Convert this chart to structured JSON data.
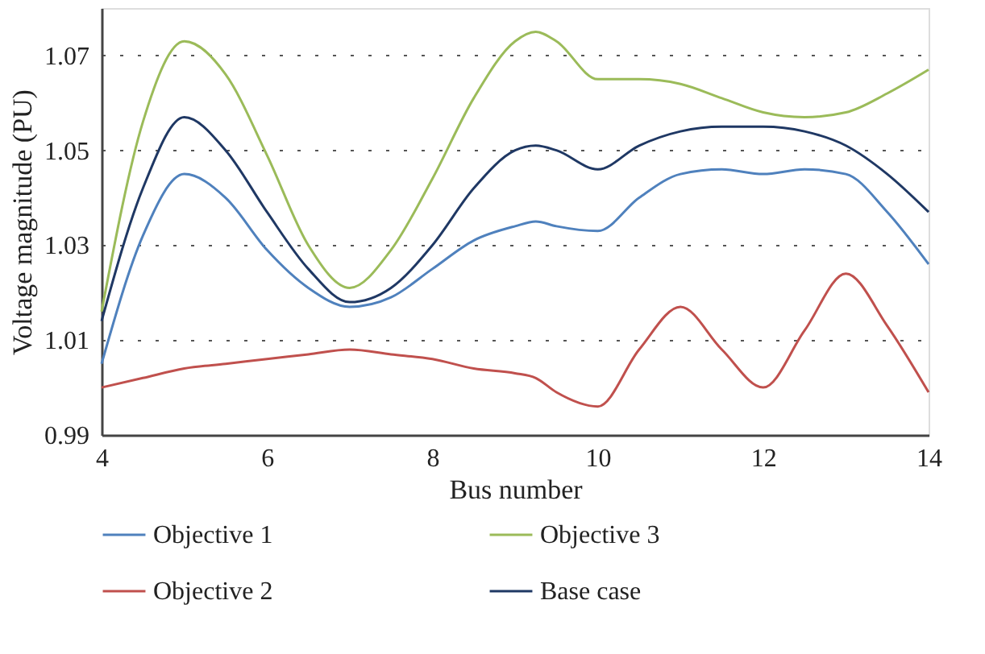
{
  "chart_data": {
    "type": "line",
    "xlabel": "Bus number",
    "ylabel": "Voltage magnitude (PU)",
    "x": [
      4,
      4.5,
      5,
      5.5,
      6,
      6.5,
      7,
      7.5,
      8,
      8.5,
      9,
      9.25,
      9.5,
      10,
      10.5,
      11,
      11.5,
      12,
      12.5,
      13,
      13.5,
      14
    ],
    "xlim": [
      4,
      14
    ],
    "xticks": [
      4,
      6,
      8,
      10,
      12,
      14
    ],
    "ylim": [
      0.99,
      1.08
    ],
    "yticks": [
      0.99,
      1.01,
      1.03,
      1.05,
      1.07
    ],
    "grid": "y",
    "legend": "bottom",
    "marker": "none",
    "line_style": "solid",
    "series": [
      {
        "name": "Objective 1",
        "color": "#4f81bd",
        "values": [
          1.005,
          1.032,
          1.045,
          1.04,
          1.029,
          1.021,
          1.017,
          1.019,
          1.025,
          1.031,
          1.034,
          1.035,
          1.034,
          1.033,
          1.04,
          1.045,
          1.046,
          1.045,
          1.046,
          1.045,
          1.037,
          1.026
        ]
      },
      {
        "name": "Objective 3",
        "color": "#9bbb59",
        "values": [
          1.016,
          1.056,
          1.073,
          1.066,
          1.049,
          1.03,
          1.021,
          1.029,
          1.044,
          1.061,
          1.073,
          1.075,
          1.073,
          1.065,
          1.065,
          1.064,
          1.061,
          1.058,
          1.057,
          1.058,
          1.062,
          1.067
        ]
      },
      {
        "name": "Objective 2",
        "color": "#c0504d",
        "values": [
          1.0,
          1.002,
          1.004,
          1.005,
          1.006,
          1.007,
          1.008,
          1.007,
          1.006,
          1.004,
          1.003,
          1.002,
          0.999,
          0.996,
          1.008,
          1.017,
          1.008,
          1.0,
          1.012,
          1.024,
          1.013,
          0.999
        ]
      },
      {
        "name": "Base case",
        "color": "#1f3864",
        "values": [
          1.014,
          1.042,
          1.057,
          1.05,
          1.037,
          1.025,
          1.018,
          1.021,
          1.03,
          1.042,
          1.05,
          1.051,
          1.05,
          1.046,
          1.051,
          1.054,
          1.055,
          1.055,
          1.054,
          1.051,
          1.045,
          1.037
        ]
      }
    ]
  }
}
